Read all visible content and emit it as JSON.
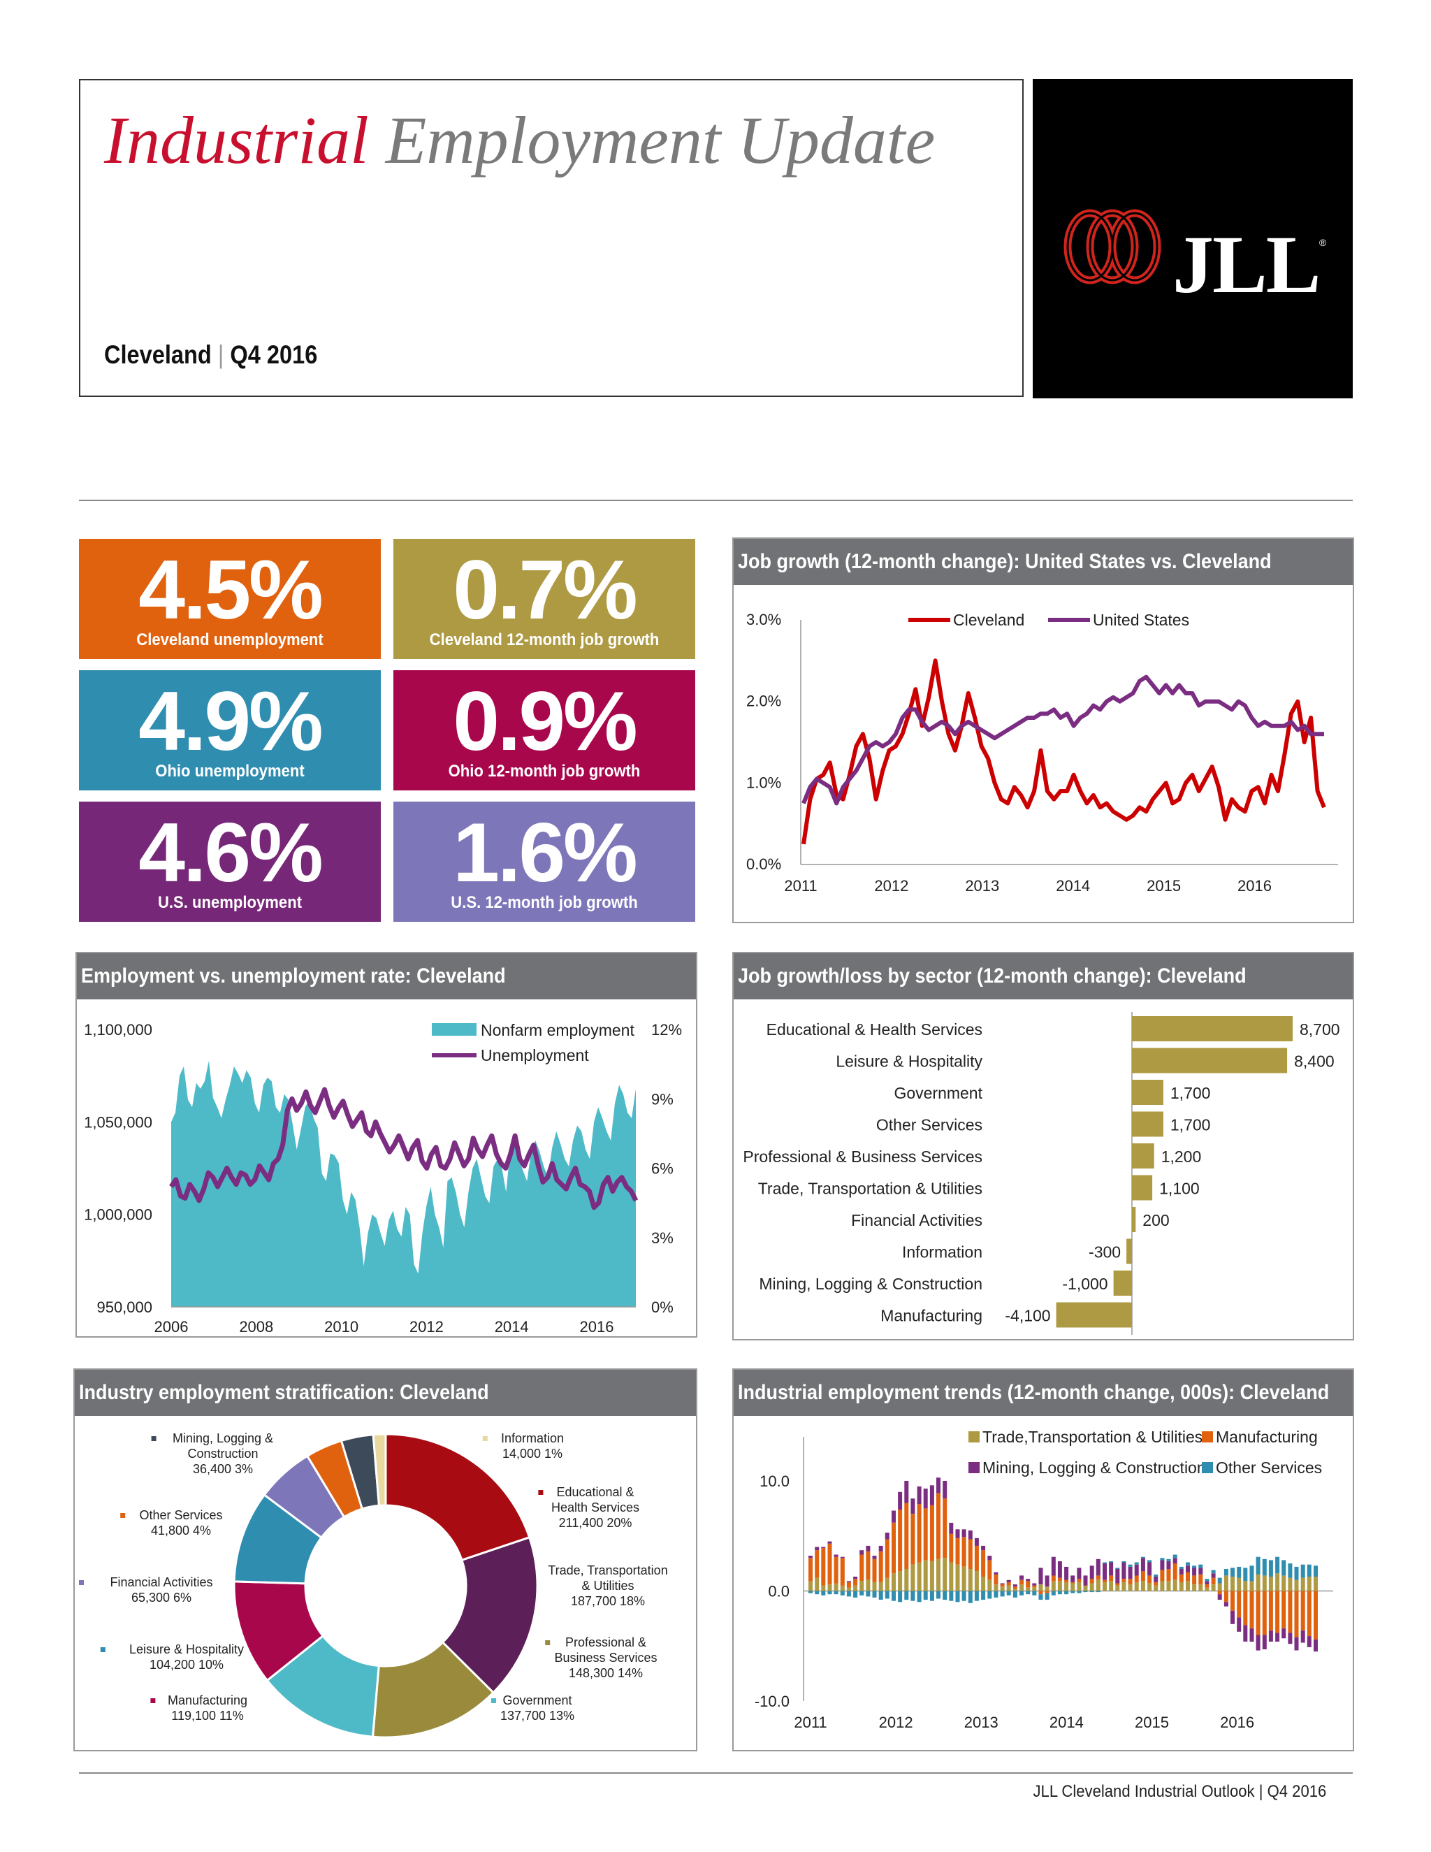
{
  "header": {
    "title_accent": "Industrial",
    "title_rest": "Employment Update",
    "market": "Cleveland",
    "separator": "|",
    "period": "Q4 2016"
  },
  "logo": {
    "text": "JLL",
    "registered": "®",
    "icon": "jll-rings-icon",
    "colors": {
      "red": "#d0241d",
      "background": "#000000"
    }
  },
  "stats": [
    {
      "value": "4.5%",
      "label": "Cleveland unemployment",
      "color": "#e0620f"
    },
    {
      "value": "0.7%",
      "label": "Cleveland 12-month job growth",
      "color": "#ae9a43"
    },
    {
      "value": "4.9%",
      "label": "Ohio unemployment",
      "color": "#2f8db0"
    },
    {
      "value": "0.9%",
      "label": "Ohio 12-month job growth",
      "color": "#a8074c"
    },
    {
      "value": "4.6%",
      "label": "U.S. unemployment",
      "color": "#762777"
    },
    {
      "value": "1.6%",
      "label": "U.S. 12-month job growth",
      "color": "#7d76b9"
    }
  ],
  "panels": {
    "job_growth_title": "Job growth (12-month change): United States vs. Cleveland",
    "employment_title": "Employment vs. unemployment rate: Cleveland",
    "sector_title": "Job growth/loss by sector (12-month change): Cleveland",
    "stratification_title": "Industry employment stratification: Cleveland",
    "trends_title": "Industrial employment trends (12-month change, 000s): Cleveland"
  },
  "chart_data": [
    {
      "id": "job_growth",
      "type": "line",
      "x_range": [
        2011.0,
        2016.92
      ],
      "x_ticks": [
        "2011",
        "2012",
        "2013",
        "2014",
        "2015",
        "2016"
      ],
      "y_ticks": [
        "0.0%",
        "1.0%",
        "2.0%",
        "3.0%"
      ],
      "ylim": [
        0,
        3
      ],
      "legend_position": "top",
      "series": [
        {
          "name": "Cleveland",
          "color": "#cc0000",
          "values": [
            0.25,
            0.8,
            1.05,
            1.1,
            1.25,
            0.85,
            0.8,
            1.1,
            1.45,
            1.6,
            1.3,
            0.8,
            1.15,
            1.4,
            1.45,
            1.6,
            1.85,
            2.15,
            1.7,
            2.05,
            2.5,
            2.0,
            1.6,
            1.4,
            1.7,
            2.1,
            1.8,
            1.45,
            1.3,
            1.0,
            0.8,
            0.75,
            0.95,
            0.85,
            0.7,
            0.9,
            1.4,
            0.9,
            0.8,
            0.9,
            0.9,
            1.1,
            0.9,
            0.75,
            0.85,
            0.7,
            0.75,
            0.65,
            0.6,
            0.55,
            0.6,
            0.7,
            0.65,
            0.8,
            0.9,
            1.0,
            0.75,
            0.8,
            1.0,
            1.1,
            0.9,
            1.05,
            1.2,
            0.95,
            0.55,
            0.8,
            0.7,
            0.65,
            0.9,
            0.95,
            0.75,
            1.1,
            0.9,
            1.35,
            1.85,
            2.0,
            1.5,
            1.8,
            0.9,
            0.7
          ]
        },
        {
          "name": "United States",
          "color": "#7b2d82",
          "values": [
            0.75,
            0.95,
            1.05,
            1.0,
            0.95,
            0.75,
            0.95,
            1.05,
            1.15,
            1.3,
            1.45,
            1.5,
            1.45,
            1.5,
            1.6,
            1.8,
            1.9,
            1.9,
            1.75,
            1.65,
            1.7,
            1.75,
            1.7,
            1.6,
            1.7,
            1.75,
            1.7,
            1.65,
            1.6,
            1.55,
            1.6,
            1.65,
            1.7,
            1.75,
            1.8,
            1.8,
            1.85,
            1.85,
            1.9,
            1.8,
            1.85,
            1.7,
            1.8,
            1.85,
            1.95,
            1.9,
            2.0,
            2.05,
            2.0,
            2.05,
            2.1,
            2.25,
            2.3,
            2.2,
            2.1,
            2.2,
            2.1,
            2.2,
            2.1,
            2.1,
            1.95,
            2.0,
            2.0,
            2.0,
            1.95,
            1.9,
            2.0,
            1.95,
            1.8,
            1.7,
            1.75,
            1.7,
            1.7,
            1.7,
            1.75,
            1.65,
            1.7,
            1.6,
            1.6,
            1.6
          ]
        }
      ]
    },
    {
      "id": "employment",
      "type": "area+line",
      "x_range": [
        2006.0,
        2016.92
      ],
      "x_ticks": [
        "2006",
        "2008",
        "2010",
        "2012",
        "2014",
        "2016"
      ],
      "left_ticks": [
        "950,000",
        "1,000,000",
        "1,050,000",
        "1,100,000"
      ],
      "right_ticks": [
        "0%",
        "3%",
        "6%",
        "9%",
        "12%"
      ],
      "ylim_left": [
        950000,
        1100000
      ],
      "ylim_right": [
        0,
        12
      ],
      "legend_position": "top-right",
      "series": [
        {
          "name": "Nonfarm employment",
          "color": "#4ebac8",
          "values": [
            1050000,
            1055000,
            1075000,
            1080000,
            1062000,
            1058000,
            1071000,
            1068000,
            1072000,
            1083000,
            1063000,
            1058000,
            1052000,
            1062000,
            1070000,
            1080000,
            1076000,
            1071000,
            1078000,
            1074000,
            1060000,
            1055000,
            1070000,
            1074000,
            1072000,
            1058000,
            1055000,
            1065000,
            1062000,
            1049000,
            1035000,
            1046000,
            1058000,
            1062000,
            1052000,
            1047000,
            1022000,
            1018000,
            1033000,
            1032000,
            1028000,
            1008000,
            1000000,
            1012000,
            1008000,
            993000,
            972000,
            990000,
            1000000,
            998000,
            990000,
            983000,
            997000,
            1002000,
            992000,
            988000,
            1004000,
            1000000,
            973000,
            968000,
            990000,
            1005000,
            1015000,
            1000000,
            993000,
            982000,
            1018000,
            1020000,
            1012000,
            1000000,
            993000,
            1012000,
            1025000,
            1030000,
            1020000,
            1010000,
            1006000,
            1026000,
            1030000,
            1025000,
            1012000,
            1035000,
            1040000,
            1030000,
            1024000,
            1018000,
            1034000,
            1040000,
            1034000,
            1026000,
            1020000,
            1036000,
            1045000,
            1038000,
            1030000,
            1026000,
            1040000,
            1048000,
            1045000,
            1035000,
            1030000,
            1050000,
            1058000,
            1052000,
            1045000,
            1040000,
            1060000,
            1070000,
            1065000,
            1055000,
            1052000,
            1068000
          ]
        },
        {
          "name": "Unemployment",
          "color": "#7b2d82",
          "values": [
            5.2,
            5.5,
            4.8,
            4.7,
            5.3,
            5.0,
            4.6,
            5.1,
            5.8,
            5.6,
            5.2,
            5.6,
            6.0,
            5.6,
            5.3,
            5.8,
            5.7,
            5.3,
            5.5,
            6.1,
            5.8,
            5.5,
            6.2,
            6.4,
            7.0,
            8.5,
            9.0,
            8.5,
            8.8,
            9.3,
            8.7,
            8.4,
            8.9,
            9.4,
            8.7,
            8.2,
            8.6,
            8.9,
            8.3,
            7.8,
            8.1,
            8.4,
            7.6,
            7.4,
            8.0,
            7.5,
            7.1,
            6.7,
            7.0,
            7.4,
            6.9,
            6.4,
            6.9,
            7.2,
            6.3,
            6.0,
            6.6,
            6.9,
            6.1,
            6.0,
            6.4,
            7.1,
            6.6,
            6.1,
            6.4,
            7.3,
            6.8,
            6.5,
            7.0,
            7.4,
            6.6,
            6.2,
            6.0,
            6.6,
            7.4,
            6.4,
            6.1,
            6.6,
            7.0,
            6.1,
            5.4,
            5.6,
            6.2,
            5.5,
            5.3,
            5.1,
            5.6,
            6.0,
            5.3,
            5.2,
            5.0,
            4.3,
            4.5,
            5.3,
            5.6,
            5.0,
            5.4,
            5.6,
            5.2,
            5.0,
            4.6
          ]
        }
      ]
    },
    {
      "id": "sector",
      "type": "bar",
      "orientation": "horizontal",
      "color": "#ae9a43",
      "categories": [
        "Educational & Health Services",
        "Leisure & Hospitality",
        "Government",
        "Other Services",
        "Professional & Business Services",
        "Trade, Transportation & Utilities",
        "Financial Activities",
        "Information",
        "Mining, Logging & Construction",
        "Manufacturing"
      ],
      "values": [
        8700,
        8400,
        1700,
        1700,
        1200,
        1100,
        200,
        -300,
        -1000,
        -4100
      ],
      "value_labels": [
        "8,700",
        "8,400",
        "1,700",
        "1,700",
        "1,200",
        "1,100",
        "200",
        "-300",
        "-1,000",
        "-4,100"
      ]
    },
    {
      "id": "stratification",
      "type": "pie",
      "style": "donut",
      "slices": [
        {
          "label": "Educational & Health Services",
          "value": 211400,
          "value_label": "211,400",
          "percent": "20%",
          "color": "#a80b12"
        },
        {
          "label": "Trade, Transportation & Utilities",
          "value": 187700,
          "value_label": "187,700",
          "percent": "18%",
          "color": "#5c1f58"
        },
        {
          "label": "Professional & Business Services",
          "value": 148300,
          "value_label": "148,300",
          "percent": "14%",
          "color": "#9a8b3c"
        },
        {
          "label": "Government",
          "value": 137700,
          "value_label": "137,700",
          "percent": "13%",
          "color": "#4ebac8"
        },
        {
          "label": "Manufacturing",
          "value": 119100,
          "value_label": "119,100",
          "percent": "11%",
          "color": "#a8074c"
        },
        {
          "label": "Leisure & Hospitality",
          "value": 104200,
          "value_label": "104,200",
          "percent": "10%",
          "color": "#2f8db0"
        },
        {
          "label": "Financial Activities",
          "value": 65300,
          "value_label": "65,300",
          "percent": "6%",
          "color": "#7d76b9"
        },
        {
          "label": "Other Services",
          "value": 41800,
          "value_label": "41,800",
          "percent": "4%",
          "color": "#e0620f"
        },
        {
          "label": "Mining, Logging & Construction",
          "value": 36400,
          "value_label": "36,400",
          "percent": "3%",
          "color": "#3d4a5a"
        },
        {
          "label": "Information",
          "value": 14000,
          "value_label": "14,000",
          "percent": "1%",
          "color": "#e8d9a0"
        }
      ]
    },
    {
      "id": "trends",
      "type": "bar",
      "stacked": true,
      "x_range": [
        2011.0,
        2016.92
      ],
      "x_ticks": [
        "2011",
        "2012",
        "2013",
        "2014",
        "2015",
        "2016"
      ],
      "y_ticks": [
        "-10.0",
        "0.0",
        "10.0"
      ],
      "ylim": [
        -10,
        14
      ],
      "legend_position": "top-right",
      "series": [
        {
          "name": "Trade,Transportation & Utilities",
          "color": "#ae9a43",
          "values": [
            0.9,
            1.2,
            0.5,
            0.6,
            0.7,
            0.5,
            0.3,
            0.5,
            0.9,
            1.0,
            0.8,
            0.8,
            1.2,
            1.6,
            1.8,
            2.0,
            2.4,
            2.6,
            2.8,
            2.7,
            2.9,
            3.0,
            2.6,
            2.4,
            2.2,
            2.0,
            1.8,
            1.3,
            1.0,
            0.6,
            0.4,
            0.5,
            0.2,
            0.6,
            0.3,
            0.3,
            0.6,
            0.4,
            0.9,
            0.9,
            0.8,
            0.7,
            0.8,
            0.5,
            0.7,
            1.0,
            0.8,
            0.9,
            0.5,
            0.8,
            0.6,
            0.8,
            0.9,
            0.7,
            0.5,
            0.9,
            0.9,
            1.0,
            0.8,
            0.9,
            0.6,
            0.6,
            0.3,
            0.6,
            0.7,
            1.4,
            1.3,
            1.2,
            0.9,
            0.9,
            1.5,
            1.4,
            1.3,
            1.6,
            1.4,
            1.2,
            1.0,
            1.2,
            1.3,
            1.3
          ]
        },
        {
          "name": "Manufacturing",
          "color": "#e0620f",
          "values": [
            2.1,
            2.5,
            3.4,
            3.7,
            2.4,
            2.5,
            0.5,
            0.6,
            2.4,
            2.6,
            2.1,
            2.8,
            3.5,
            4.6,
            5.6,
            6.0,
            4.6,
            5.3,
            4.7,
            5.1,
            6.0,
            5.4,
            2.6,
            2.4,
            2.7,
            2.7,
            2.3,
            2.4,
            1.8,
            0.9,
            0.2,
            0.3,
            0.2,
            0.4,
            0.6,
            0.2,
            -0.3,
            -0.2,
            0.5,
            0.3,
            0.2,
            0.1,
            0.3,
            0.0,
            0.4,
            0.4,
            0.2,
            0.5,
            0.2,
            0.3,
            0.5,
            0.6,
            0.9,
            0.7,
            0.3,
            1.0,
            1.1,
            1.5,
            0.7,
            0.8,
            0.8,
            0.9,
            0.3,
            0.6,
            -0.3,
            -1.0,
            -1.8,
            -2.4,
            -3.1,
            -3.4,
            -4.0,
            -4.0,
            -3.6,
            -3.8,
            -3.4,
            -3.8,
            -4.2,
            -3.6,
            -4.1,
            -4.4
          ]
        },
        {
          "name": "Mining, Logging & Construction",
          "color": "#7b2d82",
          "values": [
            0.2,
            0.3,
            0.1,
            0.2,
            0.2,
            0.1,
            0.1,
            0.2,
            0.4,
            0.5,
            0.3,
            0.5,
            0.6,
            1.1,
            1.6,
            2.0,
            1.4,
            1.6,
            1.8,
            1.8,
            1.4,
            1.6,
            1.0,
            0.8,
            0.7,
            0.8,
            0.7,
            0.4,
            0.4,
            0.2,
            0.1,
            0.2,
            0.2,
            0.4,
            0.2,
            0.2,
            1.5,
            1.0,
            1.7,
            1.5,
            1.2,
            0.6,
            1.0,
            0.9,
            1.2,
            1.5,
            1.5,
            1.2,
            1.3,
            1.5,
            1.1,
            1.0,
            1.2,
            1.2,
            0.5,
            0.9,
            0.7,
            0.5,
            0.5,
            0.6,
            0.7,
            0.6,
            0.3,
            0.4,
            -0.5,
            -0.4,
            -1.2,
            -1.3,
            -1.5,
            -1.2,
            -1.4,
            -1.3,
            -1.0,
            -0.8,
            -0.9,
            -1.0,
            -1.2,
            -1.1,
            -1.0,
            -1.1
          ]
        },
        {
          "name": "Other Services",
          "color": "#2f8db0",
          "values": [
            -0.2,
            -0.3,
            -0.4,
            -0.3,
            -0.3,
            -0.4,
            -0.5,
            -0.6,
            -0.4,
            -0.5,
            -0.6,
            -0.8,
            -0.7,
            -0.9,
            -1.0,
            -0.8,
            -0.9,
            -1.0,
            -0.8,
            -0.9,
            -0.7,
            -0.8,
            -0.9,
            -1.0,
            -0.9,
            -1.1,
            -0.9,
            -0.8,
            -0.7,
            -0.6,
            -0.5,
            -0.4,
            -0.6,
            -0.4,
            -0.3,
            -0.4,
            -0.5,
            -0.6,
            -0.4,
            -0.3,
            -0.3,
            -0.2,
            -0.2,
            -0.1,
            -0.1,
            -0.1,
            0.1,
            0.1,
            0.1,
            0.1,
            0.2,
            0.2,
            0.1,
            0.2,
            0.2,
            0.2,
            0.2,
            0.3,
            0.2,
            0.3,
            0.2,
            0.3,
            0.2,
            0.3,
            0.5,
            0.6,
            0.8,
            1.0,
            1.2,
            1.4,
            1.6,
            1.5,
            1.5,
            1.5,
            1.4,
            1.3,
            1.2,
            1.2,
            1.1,
            1.0
          ]
        }
      ]
    }
  ],
  "footer": "JLL Cleveland Industrial Outlook | Q4 2016"
}
